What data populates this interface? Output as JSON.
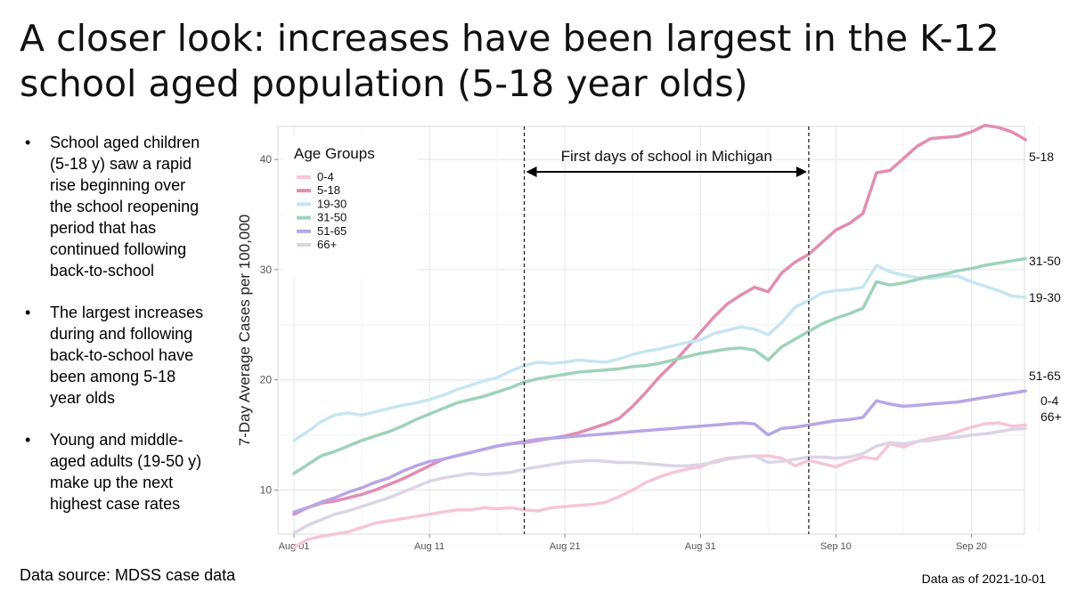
{
  "slide": {
    "title_line1": "A closer look: increases have been largest in the K-12",
    "title_line2": "school aged population (5-18 year olds)",
    "bullets": [
      [
        "School aged children",
        "(5-18 y) saw a rapid",
        "rise beginning over",
        "the school reopening",
        "period that has",
        "continued following",
        "back-to-school"
      ],
      [
        "The largest increases",
        "during and following",
        "back-to-school have",
        "been among 5-18",
        "year olds"
      ],
      [
        "Young and middle-",
        "aged adults (19-50 y)",
        "make up the next",
        "highest case rates"
      ]
    ],
    "bullet_symbol": "•",
    "source": "Data source: MDSS case data",
    "data_as_of": "Data as of 2021-10-01"
  },
  "chart_data": {
    "type": "line",
    "ylabel": "7-Day Average Cases per 100,000",
    "xlabel": "",
    "x_start": "2021-08-01",
    "x_ticks": [
      "Aug 01",
      "Aug 11",
      "Aug 21",
      "Aug 31",
      "Sep 10",
      "Sep 20"
    ],
    "y_ticks": [
      "10",
      "20",
      "30",
      "40"
    ],
    "xlim": [
      "2021-08-01",
      "2021-09-23"
    ],
    "ylim": [
      6,
      43
    ],
    "grid": true,
    "legend": {
      "title": "Age Groups",
      "position": "top-left"
    },
    "annotation": {
      "text": "First days of school in Michigan",
      "vlines": [
        "2021-08-18",
        "2021-09-08"
      ]
    },
    "end_labels": [
      "5-18",
      "31-50",
      "19-30",
      "51-65",
      "0-4",
      "66+"
    ],
    "series": [
      {
        "name": "0-4",
        "color": "#f6c6d5",
        "values": [
          4.8,
          5.5,
          5.8,
          6.0,
          6.2,
          6.6,
          7.0,
          7.2,
          7.4,
          7.6,
          7.8,
          8.0,
          8.2,
          8.2,
          8.4,
          8.3,
          8.4,
          8.2,
          8.1,
          8.4,
          8.5,
          8.6,
          8.7,
          8.9,
          9.4,
          10.0,
          10.7,
          11.2,
          11.6,
          11.9,
          12.1,
          12.6,
          12.9,
          13.0,
          13.1,
          13.1,
          12.9,
          12.2,
          12.7,
          12.4,
          12.1,
          12.6,
          13.0,
          12.8,
          14.2,
          13.9,
          14.4,
          14.7,
          14.9,
          15.3,
          15.7,
          16.0,
          16.1,
          15.8,
          15.9
        ]
      },
      {
        "name": "5-18",
        "color": "#e28db2",
        "values": [
          7.8,
          8.4,
          8.8,
          9.0,
          9.3,
          9.6,
          10.0,
          10.5,
          11.0,
          11.6,
          12.2,
          12.8,
          13.1,
          13.4,
          13.7,
          14.0,
          14.2,
          14.3,
          14.5,
          14.7,
          14.9,
          15.2,
          15.6,
          16.0,
          16.5,
          17.6,
          18.9,
          20.3,
          21.5,
          22.9,
          24.3,
          25.7,
          26.9,
          27.7,
          28.4,
          28.0,
          29.7,
          30.7,
          31.4,
          32.5,
          33.6,
          34.2,
          35.1,
          38.8,
          39.0,
          40.1,
          41.2,
          41.9,
          42.0,
          42.1,
          42.5,
          43.1,
          42.9,
          42.5,
          41.8
        ]
      },
      {
        "name": "19-30",
        "color": "#c6e6f1",
        "values": [
          14.5,
          15.3,
          16.2,
          16.8,
          17.0,
          16.8,
          17.1,
          17.4,
          17.7,
          17.9,
          18.2,
          18.6,
          19.1,
          19.5,
          19.9,
          20.2,
          20.8,
          21.3,
          21.6,
          21.5,
          21.6,
          21.8,
          21.7,
          21.6,
          21.9,
          22.3,
          22.6,
          22.8,
          23.1,
          23.4,
          23.6,
          24.2,
          24.5,
          24.8,
          24.6,
          24.1,
          25.2,
          26.6,
          27.2,
          27.9,
          28.1,
          28.2,
          28.4,
          30.4,
          29.8,
          29.5,
          29.3,
          29.2,
          29.4,
          29.4,
          28.9,
          28.5,
          28.1,
          27.6,
          27.5
        ]
      },
      {
        "name": "31-50",
        "color": "#9fd3b8",
        "values": [
          11.5,
          12.3,
          13.1,
          13.5,
          14.0,
          14.5,
          14.9,
          15.3,
          15.8,
          16.4,
          16.9,
          17.4,
          17.9,
          18.2,
          18.5,
          18.9,
          19.3,
          19.8,
          20.1,
          20.3,
          20.5,
          20.7,
          20.8,
          20.9,
          21.0,
          21.2,
          21.3,
          21.5,
          21.8,
          22.1,
          22.4,
          22.6,
          22.8,
          22.9,
          22.7,
          21.8,
          23.0,
          23.7,
          24.4,
          25.1,
          25.6,
          26.0,
          26.5,
          28.9,
          28.6,
          28.8,
          29.1,
          29.4,
          29.6,
          29.9,
          30.1,
          30.4,
          30.6,
          30.8,
          31.0
        ]
      },
      {
        "name": "51-65",
        "color": "#b8a6e6",
        "values": [
          8.0,
          8.4,
          8.9,
          9.3,
          9.8,
          10.2,
          10.7,
          11.1,
          11.7,
          12.2,
          12.6,
          12.8,
          13.1,
          13.4,
          13.7,
          14.0,
          14.2,
          14.4,
          14.6,
          14.7,
          14.8,
          14.9,
          15.0,
          15.1,
          15.2,
          15.3,
          15.4,
          15.5,
          15.6,
          15.7,
          15.8,
          15.9,
          16.0,
          16.1,
          16.0,
          15.0,
          15.6,
          15.7,
          15.9,
          16.1,
          16.3,
          16.4,
          16.6,
          18.1,
          17.8,
          17.6,
          17.7,
          17.8,
          17.9,
          18.0,
          18.2,
          18.4,
          18.6,
          18.8,
          19.0
        ]
      },
      {
        "name": "66+",
        "color": "#dcd4e6",
        "values": [
          6.1,
          6.8,
          7.3,
          7.8,
          8.1,
          8.5,
          8.9,
          9.3,
          9.8,
          10.3,
          10.8,
          11.1,
          11.3,
          11.5,
          11.4,
          11.5,
          11.6,
          11.9,
          12.1,
          12.3,
          12.5,
          12.6,
          12.7,
          12.6,
          12.5,
          12.5,
          12.4,
          12.3,
          12.2,
          12.2,
          12.3,
          12.5,
          12.8,
          13.0,
          13.1,
          12.5,
          12.6,
          12.8,
          13.0,
          13.0,
          12.9,
          13.0,
          13.3,
          14.0,
          14.3,
          14.2,
          14.4,
          14.5,
          14.7,
          14.8,
          15.0,
          15.1,
          15.3,
          15.5,
          15.6
        ]
      }
    ]
  }
}
